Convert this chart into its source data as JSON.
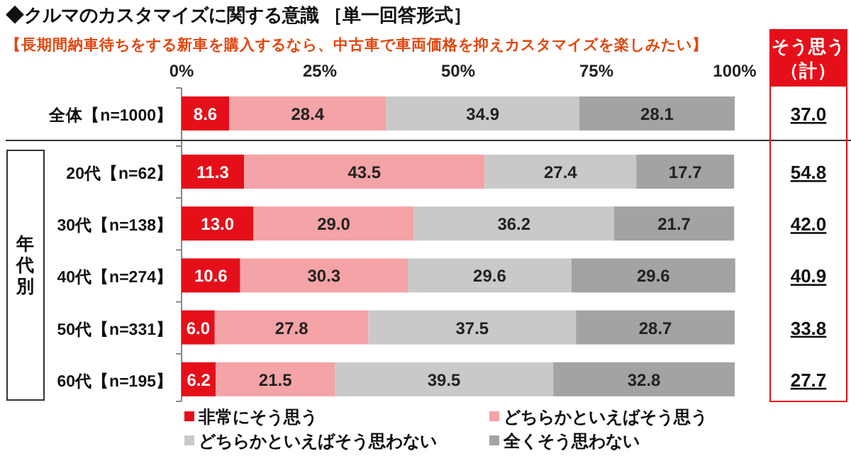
{
  "chart_data": {
    "type": "bar",
    "orientation": "horizontal",
    "stacked": true,
    "title": "◆クルマのカスタマイズに関する意識 ［単一回答形式］",
    "subtitle": "【長期間納車待ちをする新車を購入するなら、中古車で車両価格を抑えカスタマイズを楽しみたい】",
    "categories": [
      "全体【n=1000】",
      "20代【n=62】",
      "30代【n=138】",
      "40代【n=274】",
      "50代【n=331】",
      "60代【n=195】"
    ],
    "series": [
      {
        "name": "非常にそう思う",
        "color": "#e50f1a",
        "values": [
          8.6,
          11.3,
          13.0,
          10.6,
          6.0,
          6.2
        ],
        "value_labels": [
          "8.6",
          "11.3",
          "13.0",
          "10.6",
          "6.0",
          "6.2"
        ]
      },
      {
        "name": "どちらかといえばそう思う",
        "color": "#f4a3a6",
        "values": [
          28.4,
          43.5,
          29.0,
          30.3,
          27.8,
          21.5
        ],
        "value_labels": [
          "28.4",
          "43.5",
          "29.0",
          "30.3",
          "27.8",
          "21.5"
        ]
      },
      {
        "name": "どちらかといえばそう思わない",
        "color": "#c9c9c9",
        "values": [
          34.9,
          27.4,
          36.2,
          29.6,
          37.5,
          39.5
        ],
        "value_labels": [
          "34.9",
          "27.4",
          "36.2",
          "29.6",
          "37.5",
          "39.5"
        ]
      },
      {
        "name": "全くそう思わない",
        "color": "#a3a3a3",
        "values": [
          28.1,
          17.7,
          21.7,
          29.6,
          28.7,
          32.8
        ],
        "value_labels": [
          "28.1",
          "17.7",
          "21.7",
          "29.6",
          "28.7",
          "32.8"
        ]
      }
    ],
    "xlim": [
      0,
      100
    ],
    "xticks": [
      {
        "value": 0,
        "label": "0%"
      },
      {
        "value": 25,
        "label": "25%"
      },
      {
        "value": 50,
        "label": "50%"
      },
      {
        "value": 75,
        "label": "75%"
      },
      {
        "value": 100,
        "label": "100%"
      }
    ],
    "annotations": [
      "そう思う",
      "（計）",
      "37.0",
      "54.8",
      "42.0",
      "40.9",
      "33.8",
      "27.7",
      "年代別"
    ],
    "legend": "bottom"
  }
}
